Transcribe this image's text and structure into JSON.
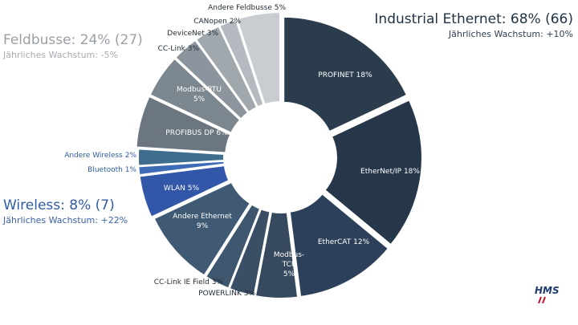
{
  "chart_data": {
    "type": "pie",
    "donut": true,
    "groups": [
      {
        "name": "Industrial Ethernet: 68% (66)",
        "subtitle": "Jährliches Wachstum: +10%",
        "color": "#1e3244"
      },
      {
        "name": "Feldbusse: 24% (27)",
        "subtitle": "Jährliches Wachstum: -5%",
        "color": "#9aa0a6"
      },
      {
        "name": "Wireless: 8% (7)",
        "subtitle": "Jährliches Wachstum: +22%",
        "color": "#2f5ba3"
      }
    ],
    "slices": [
      {
        "name": "PROFINET",
        "value": 18,
        "label": "PROFINET 18%",
        "group": 0,
        "color": "#2b3c4d"
      },
      {
        "name": "EtherNet/IP",
        "value": 18,
        "label": "EtherNet/IP 18%",
        "group": 0,
        "color": "#263749"
      },
      {
        "name": "EtherCAT",
        "value": 12,
        "label": "EtherCAT 12%",
        "group": 0,
        "color": "#2c4159"
      },
      {
        "name": "Modbus-TCP",
        "value": 5,
        "label": "Modbus-\nTCP\n5%",
        "group": 0,
        "color": "#36495e"
      },
      {
        "name": "POWERLINK",
        "value": 3,
        "label": "POWERLINK 3%",
        "group": 0,
        "color": "#3a4f66"
      },
      {
        "name": "CC-Link IE Field",
        "value": 3,
        "label": "CC-Link IE Field 3%",
        "group": 0,
        "color": "#3e566e"
      },
      {
        "name": "Andere Ethernet",
        "value": 9,
        "label": "Andere Ethernet\n9%",
        "group": 0,
        "color": "#405a74"
      },
      {
        "name": "WLAN",
        "value": 5,
        "label": "WLAN 5%",
        "group": 2,
        "color": "#3257a8"
      },
      {
        "name": "Bluetooth",
        "value": 1,
        "label": "Bluetooth 1%",
        "group": 2,
        "color": "#3d6bb5"
      },
      {
        "name": "Andere Wireless",
        "value": 2,
        "label": "Andere Wireless 2%",
        "group": 2,
        "color": "#3f6d8e"
      },
      {
        "name": "PROFIBUS DP",
        "value": 6,
        "label": "PROFIBUS DP 6%",
        "group": 1,
        "color": "#6b7680"
      },
      {
        "name": "Modbus-RTU",
        "value": 5,
        "label": "Modbus-RTU\n5%",
        "group": 1,
        "color": "#7c868f"
      },
      {
        "name": "CC-Link",
        "value": 3,
        "label": "CC-Link 3%",
        "group": 1,
        "color": "#8c959d"
      },
      {
        "name": "DeviceNet",
        "value": 3,
        "label": "DeviceNet 3%",
        "group": 1,
        "color": "#a0a7ad"
      },
      {
        "name": "CANopen",
        "value": 2,
        "label": "CANopen 2%",
        "group": 1,
        "color": "#b4babf"
      },
      {
        "name": "Andere Feldbusse",
        "value": 5,
        "label": "Andere Feldbusse 5%",
        "group": 1,
        "color": "#c9cdd1"
      }
    ],
    "legend": "none"
  },
  "logo": {
    "text": "HMS",
    "color": "#1e3a6e",
    "accent": "#c8102e"
  }
}
